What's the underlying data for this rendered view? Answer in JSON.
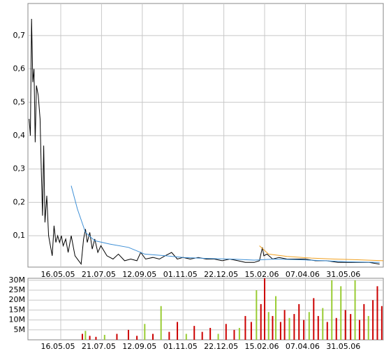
{
  "chart_data": [
    {
      "type": "line",
      "xlim": [
        "23.03.05",
        "20.07.06"
      ],
      "xticks": [
        "16.05.05",
        "21.07.05",
        "12.09.05",
        "01.11.05",
        "22.12.05",
        "15.02.06",
        "07.04.06",
        "31.05.06"
      ],
      "ylim": [
        0.006,
        0.796
      ],
      "yticks": [
        {
          "value": 0.1,
          "label": "0,1"
        },
        {
          "value": 0.2,
          "label": "0,2"
        },
        {
          "value": 0.3,
          "label": "0,3"
        },
        {
          "value": 0.4,
          "label": "0,4"
        },
        {
          "value": 0.5,
          "label": "0,5"
        },
        {
          "value": 0.6,
          "label": "0,6"
        },
        {
          "value": 0.7,
          "label": "0,7"
        }
      ],
      "grid": true,
      "series": [
        {
          "color": "#000000",
          "x": [
            "25.03.05",
            "27.03.05",
            "29.03.05",
            "31.03.05",
            "02.04.05",
            "04.04.05",
            "06.04.05",
            "09.04.05",
            "12.04.05",
            "14.04.05",
            "16.04.05",
            "18.04.05",
            "20.04.05",
            "23.04.05",
            "26.04.05",
            "29.04.05",
            "02.05.05",
            "05.05.05",
            "08.05.05",
            "11.05.05",
            "14.05.05",
            "17.05.05",
            "20.05.05",
            "24.05.05",
            "28.05.05",
            "02.06.05",
            "08.06.05",
            "14.06.05",
            "18.06.05",
            "22.06.05",
            "25.06.05",
            "28.06.05",
            "02.07.05",
            "06.07.05",
            "10.07.05",
            "15.07.05",
            "20.07.05",
            "28.07.05",
            "05.08.05",
            "12.08.05",
            "20.08.05",
            "28.08.05",
            "05.09.05",
            "10.09.05",
            "16.09.05",
            "25.09.05",
            "03.10.05",
            "10.10.05",
            "18.10.05",
            "25.10.05",
            "01.11.05",
            "10.11.05",
            "20.11.05",
            "30.11.05",
            "10.12.05",
            "20.12.05",
            "30.12.05",
            "10.01.06",
            "20.01.06",
            "01.02.06",
            "08.02.06",
            "12.02.06",
            "14.02.06",
            "18.02.06",
            "25.02.06",
            "05.03.06",
            "15.03.06",
            "25.03.06",
            "07.04.06",
            "20.04.06",
            "05.05.06",
            "20.05.06",
            "31.05.06",
            "15.06.06",
            "01.07.06",
            "15.07.06"
          ],
          "values": [
            0.45,
            0.4,
            0.75,
            0.56,
            0.6,
            0.38,
            0.55,
            0.52,
            0.45,
            0.3,
            0.16,
            0.37,
            0.14,
            0.22,
            0.1,
            0.07,
            0.04,
            0.13,
            0.08,
            0.1,
            0.08,
            0.1,
            0.07,
            0.09,
            0.05,
            0.1,
            0.04,
            0.025,
            0.015,
            0.09,
            0.12,
            0.08,
            0.11,
            0.06,
            0.09,
            0.05,
            0.07,
            0.04,
            0.03,
            0.045,
            0.025,
            0.03,
            0.025,
            0.05,
            0.03,
            0.035,
            0.03,
            0.04,
            0.05,
            0.03,
            0.035,
            0.03,
            0.035,
            0.03,
            0.03,
            0.025,
            0.03,
            0.025,
            0.02,
            0.02,
            0.025,
            0.065,
            0.04,
            0.045,
            0.03,
            0.035,
            0.03,
            0.03,
            0.03,
            0.025,
            0.025,
            0.02,
            0.02,
            0.02,
            0.02,
            0.015
          ]
        },
        {
          "color": "#3d8fd6",
          "x": [
            "02.06.05",
            "12.06.05",
            "25.06.05",
            "10.07.05",
            "01.08.05",
            "25.08.05",
            "15.09.05",
            "10.10.05",
            "01.11.05",
            "01.12.05",
            "01.01.06",
            "01.02.06",
            "01.03.06",
            "01.04.06",
            "01.05.06",
            "01.06.06",
            "15.07.06"
          ],
          "values": [
            0.25,
            0.18,
            0.11,
            0.085,
            0.075,
            0.065,
            0.045,
            0.04,
            0.035,
            0.032,
            0.03,
            0.027,
            0.03,
            0.028,
            0.025,
            0.022,
            0.02
          ]
        },
        {
          "color": "#f0a020",
          "x": [
            "08.02.06",
            "20.02.06",
            "15.03.06",
            "15.04.06",
            "15.05.06",
            "15.06.06",
            "20.07.06"
          ],
          "values": [
            0.07,
            0.045,
            0.038,
            0.033,
            0.03,
            0.028,
            0.025
          ]
        }
      ]
    },
    {
      "type": "bar",
      "xlim": [
        "23.03.05",
        "20.07.06"
      ],
      "xticks": [
        "16.05.05",
        "21.07.05",
        "12.09.05",
        "01.11.05",
        "22.12.05",
        "15.02.06",
        "07.04.06",
        "31.05.06"
      ],
      "ylim": [
        0,
        31000000
      ],
      "yticks": [
        {
          "value": 5000000,
          "label": "5M"
        },
        {
          "value": 10000000,
          "label": "10M"
        },
        {
          "value": 15000000,
          "label": "15M"
        },
        {
          "value": 20000000,
          "label": "20M"
        },
        {
          "value": 25000000,
          "label": "25M"
        },
        {
          "value": 30000000,
          "label": "30M"
        }
      ],
      "grid": true,
      "x": [
        "20.06.05",
        "25.06.05",
        "02.07.05",
        "12.07.05",
        "25.07.05",
        "10.08.05",
        "25.08.05",
        "05.09.05",
        "15.09.05",
        "25.09.05",
        "05.10.05",
        "15.10.05",
        "25.10.05",
        "05.11.05",
        "15.11.05",
        "25.11.05",
        "05.12.05",
        "15.12.05",
        "25.12.05",
        "05.01.06",
        "12.01.06",
        "20.01.06",
        "28.01.06",
        "04.02.06",
        "10.02.06",
        "15.02.06",
        "20.02.06",
        "25.02.06",
        "01.03.06",
        "07.03.06",
        "12.03.06",
        "18.03.06",
        "24.03.06",
        "30.03.06",
        "05.04.06",
        "12.04.06",
        "18.04.06",
        "24.04.06",
        "30.04.06",
        "06.05.06",
        "12.05.06",
        "18.05.06",
        "24.05.06",
        "30.05.06",
        "06.06.06",
        "12.06.06",
        "18.06.06",
        "24.06.06",
        "30.06.06",
        "06.07.06",
        "12.07.06",
        "18.07.06"
      ],
      "values": [
        3000000,
        4500000,
        2000000,
        1500000,
        2500000,
        3000000,
        5000000,
        2000000,
        8000000,
        3000000,
        17000000,
        4000000,
        9000000,
        3000000,
        7000000,
        4000000,
        6000000,
        3000000,
        8000000,
        5000000,
        6000000,
        12000000,
        9000000,
        25000000,
        18000000,
        31000000,
        14000000,
        12000000,
        22000000,
        9000000,
        15000000,
        11000000,
        13000000,
        18000000,
        10000000,
        14000000,
        21000000,
        12000000,
        16000000,
        9000000,
        30000000,
        11000000,
        27000000,
        15000000,
        13000000,
        30000000,
        10000000,
        18000000,
        12000000,
        20000000,
        27000000,
        17000000
      ],
      "colors": [
        "#cc0000",
        "#99cc33",
        "#cc0000",
        "#cc0000",
        "#99cc33",
        "#cc0000",
        "#cc0000",
        "#cc0000",
        "#99cc33",
        "#cc0000",
        "#99cc33",
        "#cc0000",
        "#cc0000",
        "#99cc33",
        "#cc0000",
        "#cc0000",
        "#cc0000",
        "#99cc33",
        "#cc0000",
        "#cc0000",
        "#99cc33",
        "#cc0000",
        "#cc0000",
        "#99cc33",
        "#cc0000",
        "#cc0000",
        "#99cc33",
        "#cc0000",
        "#99cc33",
        "#cc0000",
        "#cc0000",
        "#99cc33",
        "#cc0000",
        "#cc0000",
        "#cc0000",
        "#99cc33",
        "#cc0000",
        "#cc0000",
        "#99cc33",
        "#cc0000",
        "#99cc33",
        "#cc0000",
        "#99cc33",
        "#cc0000",
        "#cc0000",
        "#99cc33",
        "#cc0000",
        "#cc0000",
        "#99cc33",
        "#cc0000",
        "#cc0000",
        "#cc0000"
      ]
    }
  ]
}
